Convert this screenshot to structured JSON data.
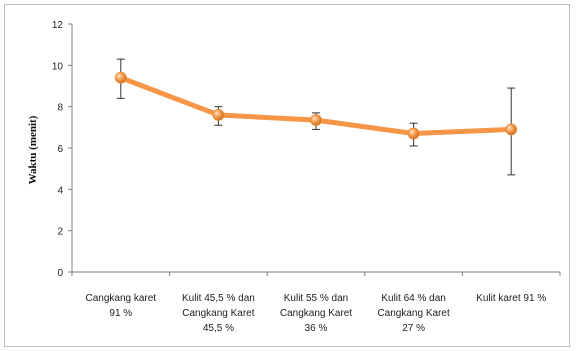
{
  "chart_data": {
    "type": "line",
    "title": "",
    "xlabel": "",
    "ylabel": "Waktu (menit)",
    "ylim": [
      0,
      12
    ],
    "yticks": [
      0,
      2,
      4,
      6,
      8,
      10,
      12
    ],
    "grid": false,
    "legend": "none",
    "categories": [
      [
        "Cangkang karet",
        "91 %"
      ],
      [
        "Kulit 45,5 % dan",
        "Cangkang Karet",
        "45,5 %"
      ],
      [
        "Kulit 55 % dan",
        "Cangkang Karet",
        "36 %"
      ],
      [
        "Kulit 64 % dan",
        "Cangkang Karet",
        "27 %"
      ],
      [
        "Kulit karet 91 %"
      ]
    ],
    "series": [
      {
        "values": [
          9.4,
          7.6,
          7.35,
          6.7,
          6.9
        ],
        "error_low": [
          8.4,
          7.1,
          6.9,
          6.1,
          4.7
        ],
        "error_high": [
          10.3,
          8.0,
          7.7,
          7.2,
          8.9
        ],
        "color": "#f79646",
        "marker_color": "#e8892e"
      }
    ]
  }
}
